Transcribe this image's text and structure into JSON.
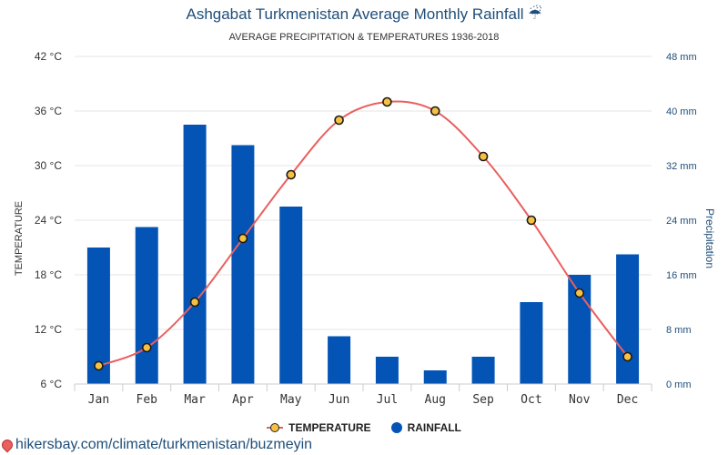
{
  "header": {
    "title": "Ashgabat Turkmenistan Average Monthly Rainfall ☔",
    "subtitle": "AVERAGE PRECIPITATION & TEMPERATURES 1936-2018"
  },
  "legend": {
    "temperature_label": "TEMPERATURE",
    "rainfall_label": "RAINFALL"
  },
  "footer": {
    "source": "hikersbay.com/climate/turkmenistan/buzmeyin"
  },
  "colors": {
    "bar": "#0454b6",
    "line": "#e8605f",
    "marker": "#f6c143",
    "right_axis": "#1f4e79"
  },
  "chart_data": {
    "type": "bar",
    "categories": [
      "Jan",
      "Feb",
      "Mar",
      "Apr",
      "May",
      "Jun",
      "Jul",
      "Aug",
      "Sep",
      "Oct",
      "Nov",
      "Dec"
    ],
    "series": [
      {
        "name": "RAINFALL",
        "type": "bar",
        "axis": "right",
        "values": [
          20,
          23,
          38,
          35,
          26,
          7,
          4,
          2,
          4,
          12,
          16,
          19
        ]
      },
      {
        "name": "TEMPERATURE",
        "type": "line",
        "axis": "left",
        "values": [
          8,
          10,
          15,
          22,
          29,
          35,
          37,
          36,
          31,
          24,
          16,
          9
        ]
      }
    ],
    "ylabel_left": "TEMPERATURE",
    "ylabel_right": "Precipitation",
    "ylim_left": [
      6,
      42
    ],
    "ylim_right": [
      0,
      48
    ],
    "yticks_left": [
      "6 °C",
      "12 °C",
      "18 °C",
      "24 °C",
      "30 °C",
      "36 °C",
      "42 °C"
    ],
    "yticks_right": [
      "0 mm",
      "8 mm",
      "16 mm",
      "24 mm",
      "32 mm",
      "40 mm",
      "48 mm"
    ],
    "grid": true,
    "legend_position": "bottom"
  }
}
